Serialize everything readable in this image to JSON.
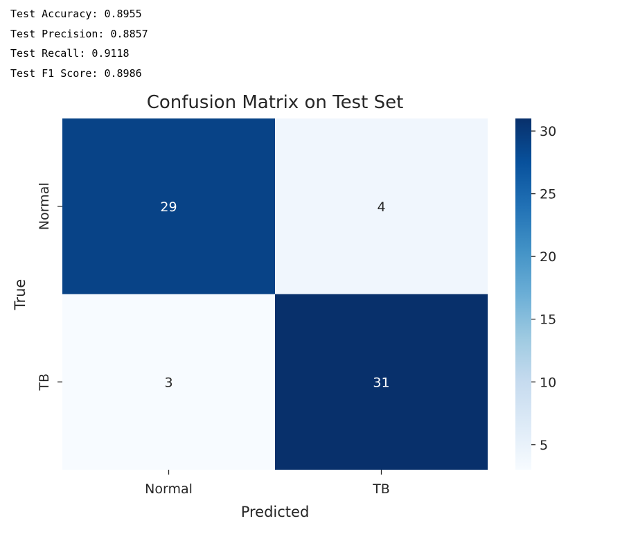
{
  "metrics": [
    {
      "label": "Test Accuracy:",
      "value": "0.8955"
    },
    {
      "label": "Test Precision:",
      "value": "0.8857"
    },
    {
      "label": "Test Recall:",
      "value": "0.9118"
    },
    {
      "label": "Test F1 Score:",
      "value": "0.8986"
    }
  ],
  "chart_data": {
    "type": "heatmap",
    "title": "Confusion Matrix on Test Set",
    "xlabel": "Predicted",
    "ylabel": "True",
    "x_categories": [
      "Normal",
      "TB"
    ],
    "y_categories": [
      "Normal",
      "TB"
    ],
    "values": [
      [
        29,
        4
      ],
      [
        3,
        31
      ]
    ],
    "annotations": true,
    "colormap": "Blues",
    "colorbar": {
      "vmin": 3,
      "vmax": 31,
      "ticks": [
        5,
        10,
        15,
        20,
        25,
        30
      ]
    },
    "grid": false
  }
}
